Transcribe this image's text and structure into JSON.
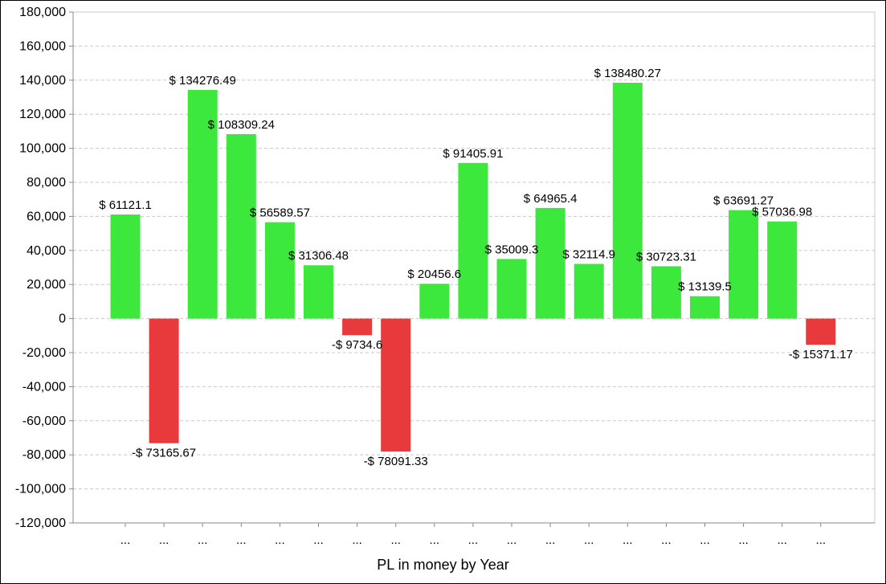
{
  "chart_data": {
    "type": "bar",
    "title": "",
    "xlabel": "PL in money by Year",
    "ylabel": "",
    "ylim": [
      -120000,
      180000
    ],
    "yticks": [
      180000,
      160000,
      140000,
      120000,
      100000,
      80000,
      60000,
      40000,
      20000,
      0,
      -20000,
      -40000,
      -60000,
      -80000,
      -100000,
      -120000
    ],
    "ytick_labels": [
      "180,000",
      "160,000",
      "140,000",
      "120,000",
      "100,000",
      "80,000",
      "60,000",
      "40,000",
      "20,000",
      "0",
      "-20,000",
      "-40,000",
      "-60,000",
      "-80,000",
      "-100,000",
      "-120,000"
    ],
    "grid": true,
    "legend": "none",
    "categories": [
      "...",
      "...",
      "...",
      "...",
      "...",
      "...",
      "...",
      "...",
      "...",
      "...",
      "...",
      "...",
      "...",
      "...",
      "...",
      "...",
      "...",
      "...",
      "..."
    ],
    "values": [
      61121.1,
      -73165.67,
      134276.49,
      108309.24,
      56589.57,
      31306.48,
      -9734.6,
      -78091.33,
      20456.6,
      91405.91,
      35009.3,
      64965.4,
      32114.9,
      138480.27,
      30723.31,
      13139.5,
      63691.27,
      57036.98,
      -15371.17
    ],
    "data_labels": [
      "$ 61121.1",
      "-$ 73165.67",
      "$ 134276.49",
      "$ 108309.24",
      "$ 56589.57",
      "$ 31306.48",
      "-$ 9734.6",
      "-$ 78091.33",
      "$ 20456.6",
      "$ 91405.91",
      "$ 35009.3",
      "$ 64965.4",
      "$ 32114.9",
      "$ 138480.27",
      "$ 30723.31",
      "$ 13139.5",
      "$ 63691.27",
      "$ 57036.98",
      "-$ 15371.17"
    ],
    "colors": {
      "positive": "#3de83d",
      "negative": "#e8393d",
      "grid": "#c8c8c8",
      "axis": "#888888"
    }
  }
}
